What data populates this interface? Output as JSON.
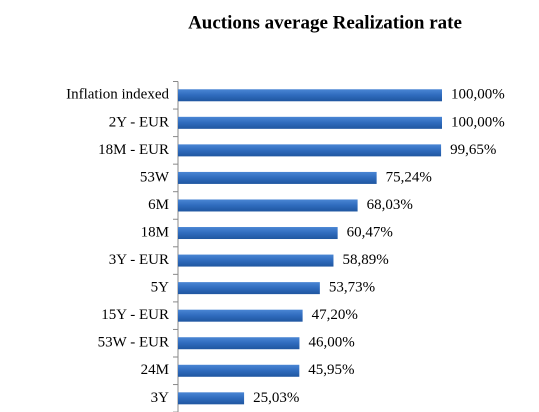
{
  "chart_data": {
    "type": "bar",
    "orientation": "horizontal",
    "title": "Auctions average Realization rate",
    "categories": [
      "Inflation indexed",
      "2Y - EUR",
      "18M - EUR",
      "53W",
      "6M",
      "18M",
      "3Y - EUR",
      "5Y",
      "15Y - EUR",
      "53W - EUR",
      "24M",
      "3Y"
    ],
    "values": [
      100.0,
      100.0,
      99.65,
      75.24,
      68.03,
      60.47,
      58.89,
      53.73,
      47.2,
      46.0,
      45.95,
      25.03
    ],
    "value_labels": [
      "100,00%",
      "100,00%",
      "99,65%",
      "75,24%",
      "68,03%",
      "60,47%",
      "58,89%",
      "53,73%",
      "47,20%",
      "46,00%",
      "45,95%",
      "25,03%"
    ],
    "color": "#2f6bbd"
  }
}
